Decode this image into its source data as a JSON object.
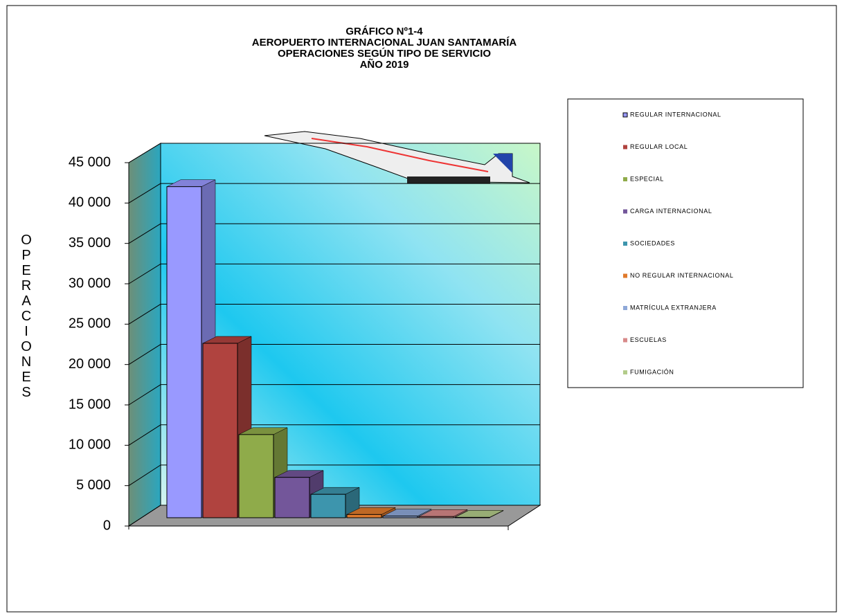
{
  "chart_data": {
    "type": "bar3d",
    "title": [
      "GRÁFICO Nº1-4",
      "AEROPUERTO  INTERNACIONAL  JUAN SANTAMARÍA",
      "OPERACIONES  SEGÚN  TIPO DE SERVICIO",
      "AÑO 2019"
    ],
    "y_label": "OPERACIONES",
    "ylim": [
      0,
      45000
    ],
    "yticks": [
      0,
      {
        "value": 5000,
        "label": "5 000"
      },
      {
        "value": 10000,
        "label": "10 000"
      },
      {
        "value": 15000,
        "label": "15 000"
      },
      {
        "value": 20000,
        "label": "20 000"
      },
      {
        "value": 25000,
        "label": "25 000"
      },
      {
        "value": 30000,
        "label": "30 000"
      },
      {
        "value": 35000,
        "label": "35 000"
      },
      {
        "value": 40000,
        "label": "40 000"
      },
      {
        "value": 45000,
        "label": "45 000"
      }
    ],
    "grid": true,
    "legend": "right",
    "series": [
      {
        "name": "REGULAR INTERNACIONAL",
        "color": "#9999ff",
        "values": [
          41000
        ]
      },
      {
        "name": "REGULAR LOCAL",
        "color": "#b0433f",
        "values": [
          21600
        ]
      },
      {
        "name": "ESPECIAL",
        "color": "#8fab4a",
        "values": [
          10300
        ]
      },
      {
        "name": "CARGA INTERNACIONAL",
        "color": "#73569a",
        "values": [
          5000
        ]
      },
      {
        "name": "SOCIEDADES",
        "color": "#3d95ad",
        "values": [
          2900
        ]
      },
      {
        "name": "NO REGULAR INTERNACIONAL",
        "color": "#e07a2b",
        "values": [
          400
        ]
      },
      {
        "name": "MATRÍCULA EXTRANJERA",
        "color": "#8ea8d8",
        "values": [
          200
        ]
      },
      {
        "name": "ESCUELAS",
        "color": "#d88a8a",
        "values": [
          150
        ]
      },
      {
        "name": "FUMIGACIÓN",
        "color": "#b3cc8a",
        "values": [
          50
        ]
      }
    ]
  }
}
